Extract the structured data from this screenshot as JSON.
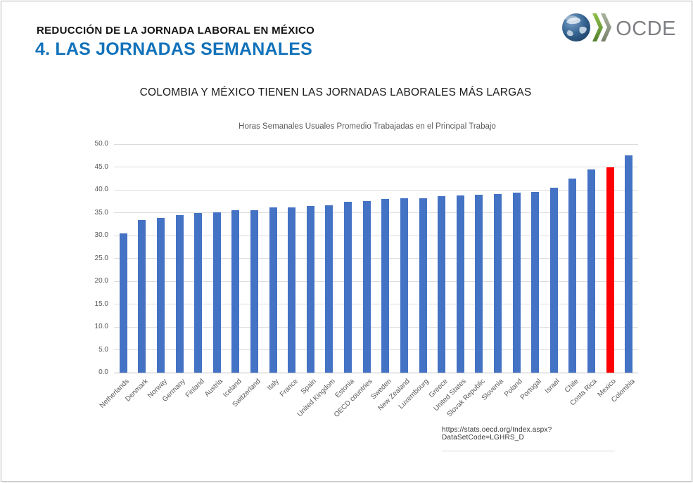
{
  "slide": {
    "kicker": "REDUCCIÓN DE LA JORNADA LABORAL EN MÉXICO",
    "title": "4. LAS JORNADAS SEMANALES",
    "title_color": "#1272BA",
    "source_url": "https://stats.oecd.org/Index.aspx?DataSetCode=LGHRS_D"
  },
  "logo": {
    "text": "OCDE",
    "globe_color": "#2c5c8f",
    "chevron_green": "#7fb043",
    "chevron_gray": "#98a08c"
  },
  "chart_data": {
    "type": "bar",
    "title": "COLOMBIA Y MÉXICO TIENEN LAS JORNADAS LABORALES MÁS LARGAS",
    "subtitle": "Horas Semanales Usuales Promedio Trabajadas en el Principal Trabajo",
    "categories": [
      "Netherlands",
      "Denmark",
      "Norway",
      "Germany",
      "Finland",
      "Austria",
      "Iceland",
      "Switzerland",
      "Italy",
      "France",
      "Spain",
      "United Kingdom",
      "Estonia",
      "OECD countries",
      "Sweden",
      "New Zealand",
      "Luxembourg",
      "Greece",
      "United States",
      "Slovak Republic",
      "Slovenia",
      "Poland",
      "Portugal",
      "Israel",
      "Chile",
      "Costa Rica",
      "Mexico",
      "Colombia"
    ],
    "values": [
      30.4,
      33.4,
      33.9,
      34.4,
      35.0,
      35.1,
      35.5,
      35.6,
      36.1,
      36.2,
      36.5,
      36.6,
      37.4,
      37.6,
      38.0,
      38.1,
      38.2,
      38.6,
      38.7,
      38.9,
      39.1,
      39.4,
      39.5,
      40.5,
      42.4,
      44.5,
      45.0,
      47.5
    ],
    "highlight_category": "Mexico",
    "bar_color": "#4472C4",
    "highlight_color": "#FF0000",
    "xlabel": "",
    "ylabel": "",
    "ylim": [
      0,
      50
    ],
    "ytick_step": 5,
    "ytick_decimals": 1,
    "grid": true,
    "legend": "none"
  }
}
